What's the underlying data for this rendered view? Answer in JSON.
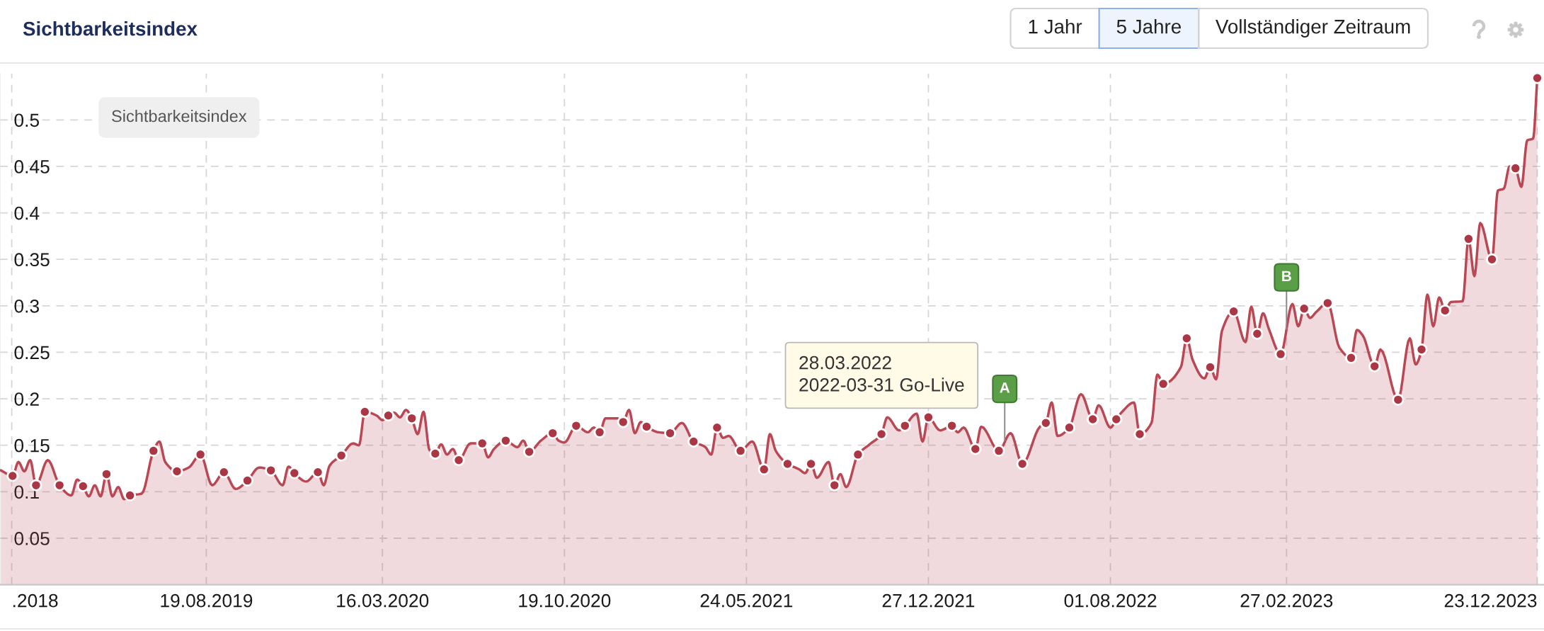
{
  "chart_data": {
    "type": "area",
    "title": "Sichtbarkeitsindex",
    "grid": true,
    "xlim": [
      "2018-12-16",
      "2023-12-31"
    ],
    "xticks": [
      {
        "value": "2018-12-30",
        "label": ".2018"
      },
      {
        "value": "2019-08-19",
        "label": "19.08.2019"
      },
      {
        "value": "2020-03-16",
        "label": "16.03.2020"
      },
      {
        "value": "2020-10-19",
        "label": "19.10.2020"
      },
      {
        "value": "2021-05-24",
        "label": "24.05.2021"
      },
      {
        "value": "2021-12-27",
        "label": "27.12.2021"
      },
      {
        "value": "2022-08-01",
        "label": "01.08.2022"
      },
      {
        "value": "2023-02-27",
        "label": "27.02.2023"
      },
      {
        "value": "2023-12-23",
        "label": "23.12.2023"
      }
    ],
    "ylim": [
      0,
      0.55
    ],
    "yticks": [
      0.05,
      0.1,
      0.15,
      0.2,
      0.25,
      0.3,
      0.35,
      0.4,
      0.45,
      0.5
    ],
    "series": [
      {
        "color": "#ba4754",
        "line_style": "solid",
        "x": [
          "2018-12-17",
          "2018-12-31",
          "2019-01-07",
          "2019-01-14",
          "2019-01-21",
          "2019-01-28",
          "2019-02-11",
          "2019-02-25",
          "2019-03-11",
          "2019-03-18",
          "2019-03-25",
          "2019-04-01",
          "2019-04-08",
          "2019-04-15",
          "2019-04-22",
          "2019-04-29",
          "2019-05-06",
          "2019-05-13",
          "2019-05-20",
          "2019-06-03",
          "2019-06-17",
          "2019-06-24",
          "2019-07-01",
          "2019-07-15",
          "2019-07-29",
          "2019-08-12",
          "2019-08-26",
          "2019-09-09",
          "2019-09-23",
          "2019-10-07",
          "2019-10-21",
          "2019-11-04",
          "2019-11-18",
          "2019-11-25",
          "2019-12-02",
          "2019-12-16",
          "2019-12-30",
          "2020-01-06",
          "2020-01-13",
          "2020-01-27",
          "2020-02-10",
          "2020-02-17",
          "2020-02-24",
          "2020-03-09",
          "2020-03-16",
          "2020-03-23",
          "2020-03-30",
          "2020-04-06",
          "2020-04-13",
          "2020-04-20",
          "2020-04-27",
          "2020-05-04",
          "2020-05-11",
          "2020-05-18",
          "2020-05-25",
          "2020-06-01",
          "2020-06-08",
          "2020-06-15",
          "2020-06-29",
          "2020-07-13",
          "2020-07-20",
          "2020-07-27",
          "2020-08-10",
          "2020-08-24",
          "2020-08-31",
          "2020-09-07",
          "2020-09-21",
          "2020-10-05",
          "2020-10-12",
          "2020-10-19",
          "2020-11-02",
          "2020-11-16",
          "2020-11-23",
          "2020-11-30",
          "2020-12-07",
          "2020-12-21",
          "2020-12-28",
          "2021-01-04",
          "2021-01-11",
          "2021-01-18",
          "2021-01-25",
          "2021-02-08",
          "2021-02-22",
          "2021-03-08",
          "2021-03-22",
          "2021-04-05",
          "2021-04-12",
          "2021-04-19",
          "2021-04-26",
          "2021-05-03",
          "2021-05-17",
          "2021-05-31",
          "2021-06-14",
          "2021-06-21",
          "2021-06-28",
          "2021-07-12",
          "2021-07-26",
          "2021-08-02",
          "2021-08-09",
          "2021-08-16",
          "2021-08-30",
          "2021-09-06",
          "2021-09-13",
          "2021-09-20",
          "2021-10-04",
          "2021-10-18",
          "2021-11-01",
          "2021-11-08",
          "2021-11-22",
          "2021-11-29",
          "2021-12-13",
          "2021-12-20",
          "2021-12-27",
          "2022-01-10",
          "2022-01-24",
          "2022-01-31",
          "2022-02-07",
          "2022-02-21",
          "2022-02-28",
          "2022-03-21",
          "2022-04-04",
          "2022-04-18",
          "2022-05-09",
          "2022-05-16",
          "2022-05-23",
          "2022-05-30",
          "2022-06-13",
          "2022-06-27",
          "2022-07-11",
          "2022-07-18",
          "2022-08-01",
          "2022-08-08",
          "2022-08-15",
          "2022-08-29",
          "2022-09-05",
          "2022-09-19",
          "2022-09-26",
          "2022-10-03",
          "2022-10-24",
          "2022-10-31",
          "2022-11-07",
          "2022-11-21",
          "2022-11-28",
          "2022-12-05",
          "2022-12-12",
          "2022-12-26",
          "2023-01-09",
          "2023-01-16",
          "2023-01-23",
          "2023-01-30",
          "2023-02-06",
          "2023-02-20",
          "2023-03-06",
          "2023-03-13",
          "2023-03-20",
          "2023-03-27",
          "2023-04-03",
          "2023-04-17",
          "2023-05-01",
          "2023-05-15",
          "2023-05-22",
          "2023-05-29",
          "2023-06-12",
          "2023-06-19",
          "2023-07-10",
          "2023-07-24",
          "2023-07-31",
          "2023-08-07",
          "2023-08-14",
          "2023-08-21",
          "2023-08-28",
          "2023-09-04",
          "2023-09-11",
          "2023-09-25",
          "2023-10-02",
          "2023-10-09",
          "2023-10-16",
          "2023-10-30",
          "2023-11-06",
          "2023-11-13",
          "2023-11-20",
          "2023-11-27",
          "2023-12-04",
          "2023-12-11",
          "2023-12-18",
          "2023-12-23"
        ],
        "values": [
          0.123,
          0.117,
          0.132,
          0.122,
          0.134,
          0.107,
          0.134,
          0.107,
          0.096,
          0.113,
          0.106,
          0.095,
          0.107,
          0.095,
          0.119,
          0.095,
          0.105,
          0.092,
          0.096,
          0.098,
          0.144,
          0.154,
          0.132,
          0.122,
          0.126,
          0.14,
          0.107,
          0.121,
          0.103,
          0.112,
          0.126,
          0.123,
          0.107,
          0.127,
          0.12,
          0.111,
          0.121,
          0.107,
          0.128,
          0.139,
          0.152,
          0.15,
          0.186,
          0.182,
          0.177,
          0.182,
          0.185,
          0.18,
          0.188,
          0.179,
          0.162,
          0.186,
          0.145,
          0.141,
          0.151,
          0.14,
          0.146,
          0.134,
          0.152,
          0.152,
          0.137,
          0.146,
          0.155,
          0.148,
          0.155,
          0.143,
          0.155,
          0.163,
          0.155,
          0.153,
          0.171,
          0.164,
          0.169,
          0.164,
          0.179,
          0.179,
          0.175,
          0.188,
          0.163,
          0.175,
          0.17,
          0.164,
          0.163,
          0.174,
          0.154,
          0.148,
          0.14,
          0.169,
          0.158,
          0.16,
          0.144,
          0.154,
          0.124,
          0.162,
          0.144,
          0.13,
          0.124,
          0.12,
          0.13,
          0.115,
          0.132,
          0.107,
          0.119,
          0.105,
          0.14,
          0.151,
          0.162,
          0.18,
          0.166,
          0.171,
          0.184,
          0.154,
          0.18,
          0.166,
          0.171,
          0.164,
          0.169,
          0.146,
          0.17,
          0.144,
          0.163,
          0.13,
          0.17,
          0.174,
          0.196,
          0.16,
          0.169,
          0.205,
          0.178,
          0.193,
          0.169,
          0.178,
          0.186,
          0.196,
          0.162,
          0.174,
          0.226,
          0.216,
          0.234,
          0.265,
          0.242,
          0.222,
          0.234,
          0.221,
          0.273,
          0.294,
          0.261,
          0.299,
          0.27,
          0.292,
          0.275,
          0.248,
          0.302,
          0.278,
          0.297,
          0.287,
          0.293,
          0.303,
          0.255,
          0.244,
          0.274,
          0.268,
          0.235,
          0.253,
          0.199,
          0.265,
          0.237,
          0.253,
          0.312,
          0.278,
          0.309,
          0.295,
          0.304,
          0.305,
          0.372,
          0.332,
          0.389,
          0.35,
          0.424,
          0.426,
          0.45,
          0.448,
          0.428,
          0.478,
          0.48,
          0.545
        ]
      },
      {
        "type": "scatter",
        "color": "#ab3745",
        "marker": "circle",
        "x": [
          "2018-12-31",
          "2019-01-28",
          "2019-02-25",
          "2019-03-25",
          "2019-04-22",
          "2019-05-20",
          "2019-06-17",
          "2019-07-15",
          "2019-08-12",
          "2019-09-09",
          "2019-10-07",
          "2019-11-04",
          "2019-12-02",
          "2019-12-30",
          "2020-01-27",
          "2020-02-24",
          "2020-03-23",
          "2020-04-20",
          "2020-05-18",
          "2020-06-15",
          "2020-07-13",
          "2020-08-10",
          "2020-09-07",
          "2020-10-05",
          "2020-11-02",
          "2020-11-30",
          "2020-12-28",
          "2021-01-25",
          "2021-02-22",
          "2021-03-22",
          "2021-04-19",
          "2021-05-17",
          "2021-06-14",
          "2021-07-12",
          "2021-08-09",
          "2021-09-06",
          "2021-10-04",
          "2021-11-01",
          "2021-11-29",
          "2021-12-27",
          "2022-01-24",
          "2022-02-21",
          "2022-03-21",
          "2022-04-18",
          "2022-05-16",
          "2022-06-13",
          "2022-07-11",
          "2022-08-08",
          "2022-09-05",
          "2022-10-03",
          "2022-10-31",
          "2022-11-28",
          "2022-12-26",
          "2023-01-23",
          "2023-02-20",
          "2023-03-20",
          "2023-04-17",
          "2023-05-15",
          "2023-06-12",
          "2023-07-10",
          "2023-08-07",
          "2023-09-04",
          "2023-10-02",
          "2023-10-30",
          "2023-11-27",
          "2023-12-23"
        ],
        "values": [
          0.117,
          0.107,
          0.107,
          0.106,
          0.119,
          0.096,
          0.144,
          0.122,
          0.14,
          0.121,
          0.112,
          0.123,
          0.12,
          0.121,
          0.139,
          0.186,
          0.182,
          0.179,
          0.141,
          0.134,
          0.152,
          0.155,
          0.143,
          0.163,
          0.171,
          0.164,
          0.175,
          0.17,
          0.163,
          0.154,
          0.169,
          0.144,
          0.124,
          0.13,
          0.13,
          0.107,
          0.14,
          0.162,
          0.171,
          0.18,
          0.171,
          0.146,
          0.144,
          0.13,
          0.174,
          0.169,
          0.178,
          0.178,
          0.162,
          0.216,
          0.265,
          0.234,
          0.294,
          0.27,
          0.248,
          0.297,
          0.303,
          0.244,
          0.235,
          0.199,
          0.253,
          0.295,
          0.372,
          0.35,
          0.448,
          0.545
        ]
      }
    ],
    "annotations": [
      {
        "text": "A",
        "x": "2022-03-28",
        "y": 0.155
      },
      {
        "text": "B",
        "x": "2023-02-27",
        "y": 0.275
      },
      "28.03.2022\n2022-03-31 Go-Live",
      "Sichtbarkeitsindex",
      "1 Jahr",
      "5 Jahre",
      "Vollständiger Zeitraum"
    ]
  }
}
